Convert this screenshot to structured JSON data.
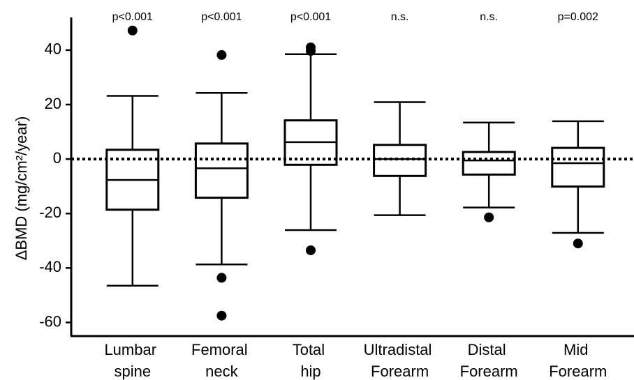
{
  "chart_data": {
    "type": "box",
    "y_label": "ΔBMD (mg/cm²/year)",
    "categories": [
      "Lumbar spine",
      "Femoral neck",
      "Total hip",
      "Ultradistal Forearm",
      "Distal Forearm",
      "Mid Forearm"
    ],
    "annotations": [
      "p<0.001",
      "p<0.001",
      "p<0.001",
      "n.s.",
      "n.s.",
      "p=0.002"
    ],
    "boxes": [
      {
        "whislo": -46.5,
        "q1": -18.6,
        "med": -7.7,
        "q3": 3.4,
        "whishi": 23.2,
        "fliers": [
          47.2
        ]
      },
      {
        "whislo": -38.7,
        "q1": -14.2,
        "med": -3.4,
        "q3": 5.7,
        "whishi": 24.3,
        "fliers": [
          38.2,
          -43.6,
          -57.5
        ]
      },
      {
        "whislo": -26.1,
        "q1": -2.1,
        "med": 6.2,
        "q3": 14.2,
        "whishi": 38.5,
        "fliers": [
          41,
          39.7,
          -33.5
        ]
      },
      {
        "whislo": -20.6,
        "q1": -6.2,
        "med": 0,
        "q3": 5.2,
        "whishi": 20.9,
        "fliers": []
      },
      {
        "whislo": -17.8,
        "q1": -5.7,
        "med": -0.5,
        "q3": 2.6,
        "whishi": 13.4,
        "fliers": [
          -21.4
        ]
      },
      {
        "whislo": -27.1,
        "q1": -10.1,
        "med": -1.5,
        "q3": 4.1,
        "whishi": 13.9,
        "fliers": [
          -31
        ]
      }
    ],
    "reference_line": 0,
    "color": "#000000",
    "ylim": [
      -65,
      52
    ],
    "yticks": [
      -60,
      -40,
      -20,
      0,
      20,
      40
    ]
  }
}
